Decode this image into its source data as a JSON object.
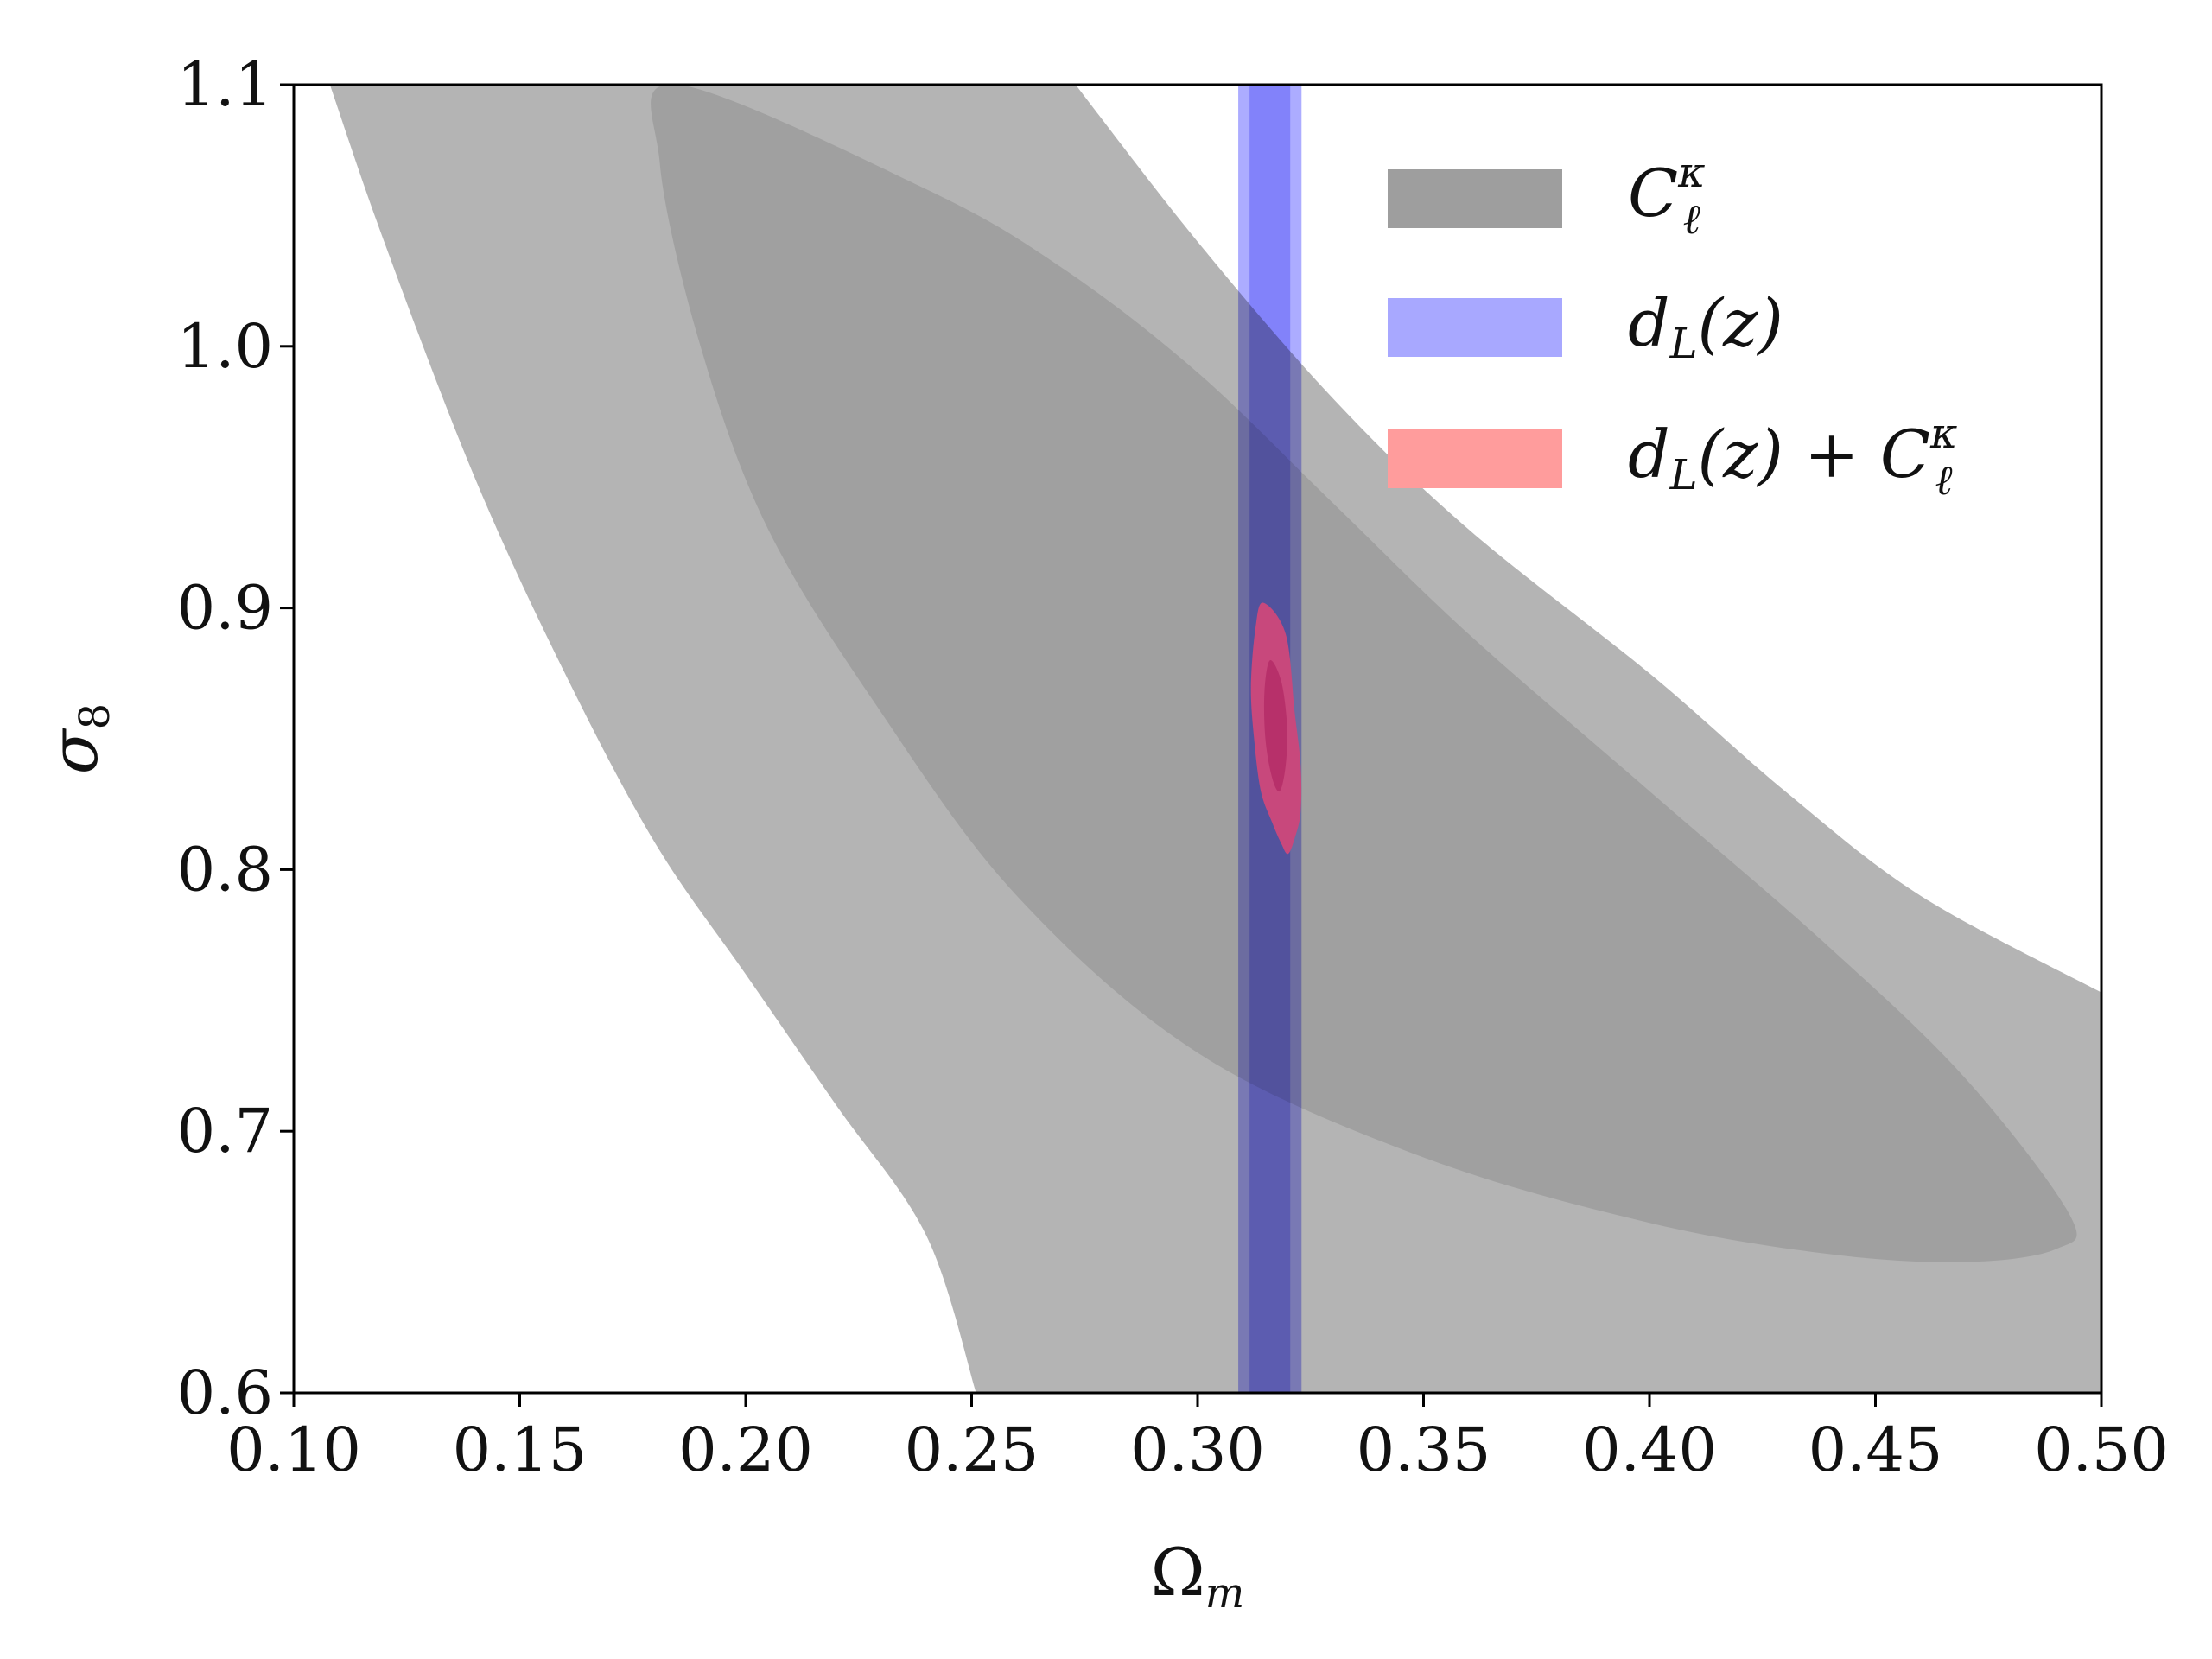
{
  "chart_data": {
    "type": "contour",
    "title": "",
    "xlabel": "Ω",
    "xlabel_sub": "m",
    "ylabel": "σ",
    "ylabel_sub": "8",
    "xlim": [
      0.1,
      0.5
    ],
    "ylim": [
      0.6,
      1.1
    ],
    "xticks": [
      "0.10",
      "0.15",
      "0.20",
      "0.25",
      "0.30",
      "0.35",
      "0.40",
      "0.45",
      "0.50"
    ],
    "yticks": [
      "0.6",
      "0.7",
      "0.8",
      "0.9",
      "1.0",
      "1.1"
    ],
    "grid": false,
    "legend_position": "top-right",
    "legend": [
      {
        "key": "cl",
        "label_main": "C",
        "label_sup": "κ",
        "label_sub": "ℓ",
        "color": "#9e9e9e"
      },
      {
        "key": "dl",
        "label_main": "d",
        "label_sub": "L",
        "label_tail": "(z)",
        "color": "#a8a8ff"
      },
      {
        "key": "comb",
        "label_main": "d",
        "label_sub": "L",
        "label_tail": "(z) + C",
        "label_sup2": "κ",
        "label_sub2": "ℓ",
        "color": "#ff9c9c"
      }
    ],
    "series": [
      {
        "name": "C_ell^kappa 95%",
        "color": "#b4b4b4",
        "upper_edge": [
          [
            0.273,
            1.1
          ],
          [
            0.3,
            1.04
          ],
          [
            0.33,
            0.98
          ],
          [
            0.36,
            0.93
          ],
          [
            0.4,
            0.875
          ],
          [
            0.43,
            0.83
          ],
          [
            0.46,
            0.79
          ],
          [
            0.5,
            0.753
          ]
        ],
        "lower_edge": [
          [
            0.108,
            1.1
          ],
          [
            0.12,
            1.04
          ],
          [
            0.14,
            0.95
          ],
          [
            0.16,
            0.875
          ],
          [
            0.18,
            0.81
          ],
          [
            0.2,
            0.76
          ],
          [
            0.22,
            0.71
          ],
          [
            0.24,
            0.66
          ],
          [
            0.251,
            0.6
          ]
        ]
      },
      {
        "name": "C_ell^kappa 68%",
        "color": "#a0a0a0",
        "outline": [
          [
            0.185,
            1.1
          ],
          [
            0.24,
            1.06
          ],
          [
            0.27,
            1.03
          ],
          [
            0.3,
            0.99
          ],
          [
            0.33,
            0.94
          ],
          [
            0.36,
            0.89
          ],
          [
            0.4,
            0.83
          ],
          [
            0.44,
            0.77
          ],
          [
            0.47,
            0.72
          ],
          [
            0.493,
            0.668
          ],
          [
            0.49,
            0.655
          ],
          [
            0.47,
            0.65
          ],
          [
            0.44,
            0.653
          ],
          [
            0.4,
            0.665
          ],
          [
            0.35,
            0.69
          ],
          [
            0.3,
            0.73
          ],
          [
            0.26,
            0.79
          ],
          [
            0.23,
            0.86
          ],
          [
            0.205,
            0.93
          ],
          [
            0.19,
            1.0
          ],
          [
            0.181,
            1.07
          ]
        ]
      },
      {
        "name": "d_L(z) 95%",
        "color": "#a8a8ff",
        "x_range": [
          0.309,
          0.323
        ]
      },
      {
        "name": "d_L(z) 68%",
        "color": "#8e8ef5",
        "x_range": [
          0.3115,
          0.3205
        ]
      },
      {
        "name": "d_L(z) + C_ell^kappa 95%",
        "color": "#c8487c",
        "outline": [
          [
            0.3145,
            0.902
          ],
          [
            0.3195,
            0.89
          ],
          [
            0.3215,
            0.86
          ],
          [
            0.3228,
            0.84
          ],
          [
            0.3228,
            0.822
          ],
          [
            0.3215,
            0.812
          ],
          [
            0.32,
            0.806
          ],
          [
            0.3185,
            0.81
          ],
          [
            0.3165,
            0.818
          ],
          [
            0.314,
            0.83
          ],
          [
            0.3125,
            0.85
          ],
          [
            0.3118,
            0.87
          ],
          [
            0.3128,
            0.892
          ]
        ]
      },
      {
        "name": "d_L(z) + C_ell^kappa 68%",
        "color": "#b7306a",
        "outline": [
          [
            0.316,
            0.88
          ],
          [
            0.3185,
            0.872
          ],
          [
            0.3198,
            0.855
          ],
          [
            0.3195,
            0.84
          ],
          [
            0.3182,
            0.83
          ],
          [
            0.3165,
            0.835
          ],
          [
            0.315,
            0.85
          ],
          [
            0.3148,
            0.868
          ]
        ]
      }
    ]
  }
}
